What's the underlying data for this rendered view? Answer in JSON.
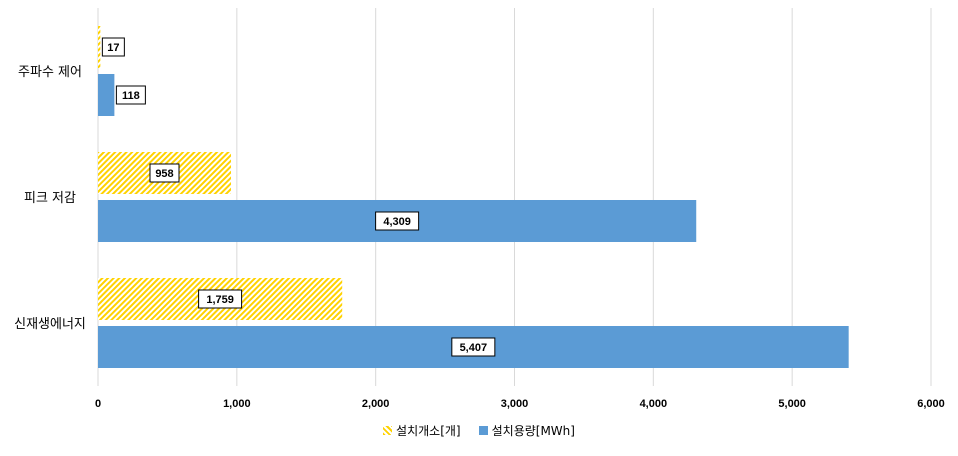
{
  "chart_data": {
    "type": "bar",
    "orientation": "horizontal",
    "categories": [
      "주파수 제어",
      "피크 저감",
      "신재생에너지"
    ],
    "series": [
      {
        "name": "설치개소[개]",
        "values": [
          17,
          958,
          1759
        ],
        "labels": [
          "17",
          "958",
          "1,759"
        ],
        "color": "#FFD200",
        "pattern": "diagonal-hatch"
      },
      {
        "name": "설치용량[MWh]",
        "values": [
          118,
          4309,
          5407
        ],
        "labels": [
          "118",
          "4,309",
          "5,407"
        ],
        "color": "#5B9BD5",
        "pattern": "solid"
      }
    ],
    "xlim": [
      0,
      6000
    ],
    "xticks": [
      0,
      1000,
      2000,
      3000,
      4000,
      5000,
      6000
    ],
    "xtick_labels": [
      "0",
      "1,000",
      "2,000",
      "3,000",
      "4,000",
      "5,000",
      "6,000"
    ],
    "grid": "vertical",
    "legend": "bottom-center",
    "title": "",
    "xlabel": "",
    "ylabel": ""
  }
}
